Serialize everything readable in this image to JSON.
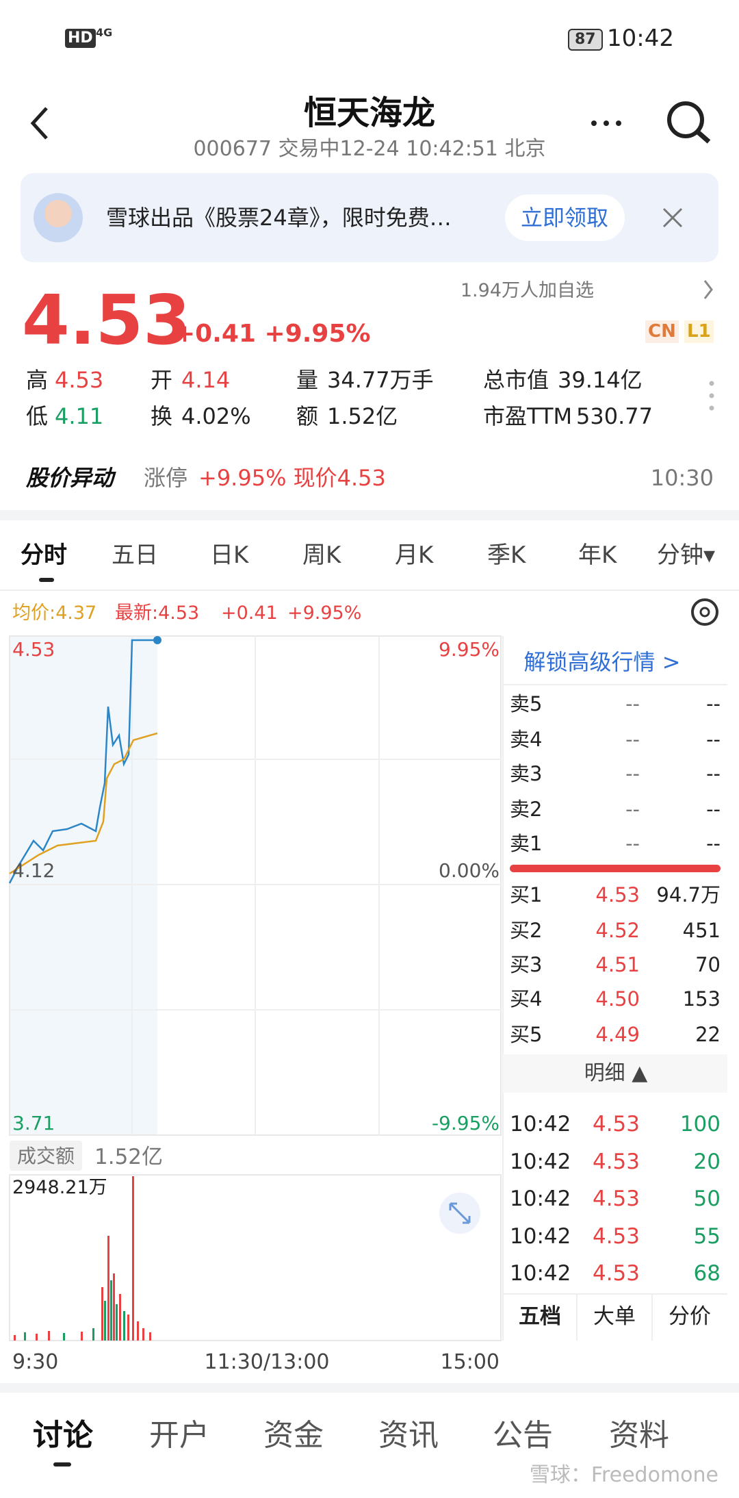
{
  "status_bar": {
    "network": "HD",
    "signal": "4G",
    "battery": "87",
    "time": "10:42"
  },
  "header": {
    "title": "恒天海龙",
    "subtitle": "000677 交易中12-24 10:42:51 北京"
  },
  "banner": {
    "text": "雪球出品《股票24章》，限时免费…",
    "button": "立即领取"
  },
  "quote": {
    "price": "4.53",
    "change": "+0.41 +9.95%",
    "followers": "1.94万人加自选",
    "badges": [
      "CN",
      "L1"
    ],
    "stats": [
      [
        {
          "label": "高",
          "value": "4.53"
        },
        {
          "label": "开",
          "value": "4.14"
        },
        {
          "label": "量",
          "value": "34.77万手"
        },
        {
          "label": "总市值",
          "value": "39.14亿"
        }
      ],
      [
        {
          "label": "低",
          "value": "4.11"
        },
        {
          "label": "换",
          "value": "4.02%"
        },
        {
          "label": "额",
          "value": "1.52亿"
        },
        {
          "label": "市盈TTM",
          "value": "530.77"
        }
      ]
    ]
  },
  "alert": {
    "title": "股价异动",
    "tag": "涨停",
    "text": "+9.95% 现价4.53",
    "time": "10:30"
  },
  "chart_tabs": [
    "分时",
    "五日",
    "日K",
    "周K",
    "月K",
    "季K",
    "年K",
    "分钟▾"
  ],
  "legend": {
    "avg": "均价:4.37",
    "latest": "最新:4.53",
    "change": "+0.41",
    "pct": "+9.95%"
  },
  "axis": {
    "top": "4.53",
    "top_pct": "9.95%",
    "mid": "4.12",
    "mid_pct": "0.00%",
    "bottom": "3.71",
    "bottom_pct": "-9.95%"
  },
  "order_book": {
    "unlock": "解锁高级行情 >",
    "asks": [
      {
        "label": "卖5",
        "price": "--",
        "volume": "--"
      },
      {
        "label": "卖4",
        "price": "--",
        "volume": "--"
      },
      {
        "label": "卖3",
        "price": "--",
        "volume": "--"
      },
      {
        "label": "卖2",
        "price": "--",
        "volume": "--"
      },
      {
        "label": "卖1",
        "price": "--",
        "volume": "--"
      }
    ],
    "bids": [
      {
        "label": "买1",
        "price": "4.53",
        "volume": "94.7万"
      },
      {
        "label": "买2",
        "price": "4.52",
        "volume": "451"
      },
      {
        "label": "买3",
        "price": "4.51",
        "volume": "70"
      },
      {
        "label": "买4",
        "price": "4.50",
        "volume": "153"
      },
      {
        "label": "买5",
        "price": "4.49",
        "volume": "22"
      }
    ]
  },
  "details": {
    "title": "明细 ▲",
    "trades": [
      {
        "time": "10:42",
        "price": "4.53",
        "volume": "100"
      },
      {
        "time": "10:42",
        "price": "4.53",
        "volume": "20"
      },
      {
        "time": "10:42",
        "price": "4.53",
        "volume": "50"
      },
      {
        "time": "10:42",
        "price": "4.53",
        "volume": "55"
      },
      {
        "time": "10:42",
        "price": "4.53",
        "volume": "68"
      }
    ],
    "tabs": [
      "五档",
      "大单",
      "分价"
    ]
  },
  "volume": {
    "label": "成交额",
    "total": "1.52亿",
    "max": "2948.21万"
  },
  "time_axis": [
    "9:30",
    "11:30/13:00",
    "15:00"
  ],
  "bottom_tabs": [
    "讨论",
    "开户",
    "资金",
    "资讯",
    "公告",
    "资料"
  ],
  "watermark": "雪球：Freedomone"
}
